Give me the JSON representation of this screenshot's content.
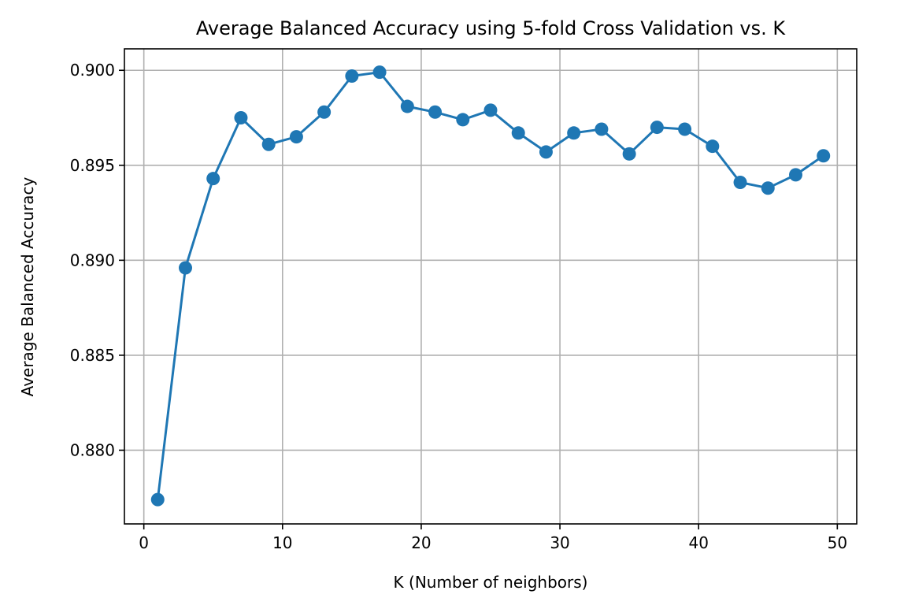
{
  "chart_data": {
    "type": "line",
    "title": "Average Balanced Accuracy using 5-fold Cross Validation vs. K",
    "xlabel": "K (Number of neighbors)",
    "ylabel": "Average Balanced Accuracy",
    "xlim": [
      -1.4,
      51.4
    ],
    "ylim": [
      0.87612,
      0.90113
    ],
    "xticks": [
      0,
      10,
      20,
      30,
      40,
      50
    ],
    "xtick_labels": [
      "0",
      "10",
      "20",
      "30",
      "40",
      "50"
    ],
    "yticks": [
      0.88,
      0.885,
      0.89,
      0.895,
      0.9
    ],
    "ytick_labels": [
      "0.880",
      "0.885",
      "0.890",
      "0.895",
      "0.900"
    ],
    "grid": true,
    "legend": "none",
    "series": [
      {
        "color": "#1f77b4",
        "marker": "circle",
        "x": [
          1,
          3,
          5,
          7,
          9,
          11,
          13,
          15,
          17,
          19,
          21,
          23,
          25,
          27,
          29,
          31,
          33,
          35,
          37,
          39,
          41,
          43,
          45,
          47,
          49
        ],
        "y": [
          0.8774,
          0.8896,
          0.8943,
          0.8975,
          0.8961,
          0.8965,
          0.8978,
          0.8997,
          0.8999,
          0.8981,
          0.8978,
          0.8974,
          0.8979,
          0.8967,
          0.8957,
          0.8967,
          0.8969,
          0.8956,
          0.897,
          0.8969,
          0.896,
          0.8941,
          0.8938,
          0.8945,
          0.8955
        ]
      }
    ]
  }
}
